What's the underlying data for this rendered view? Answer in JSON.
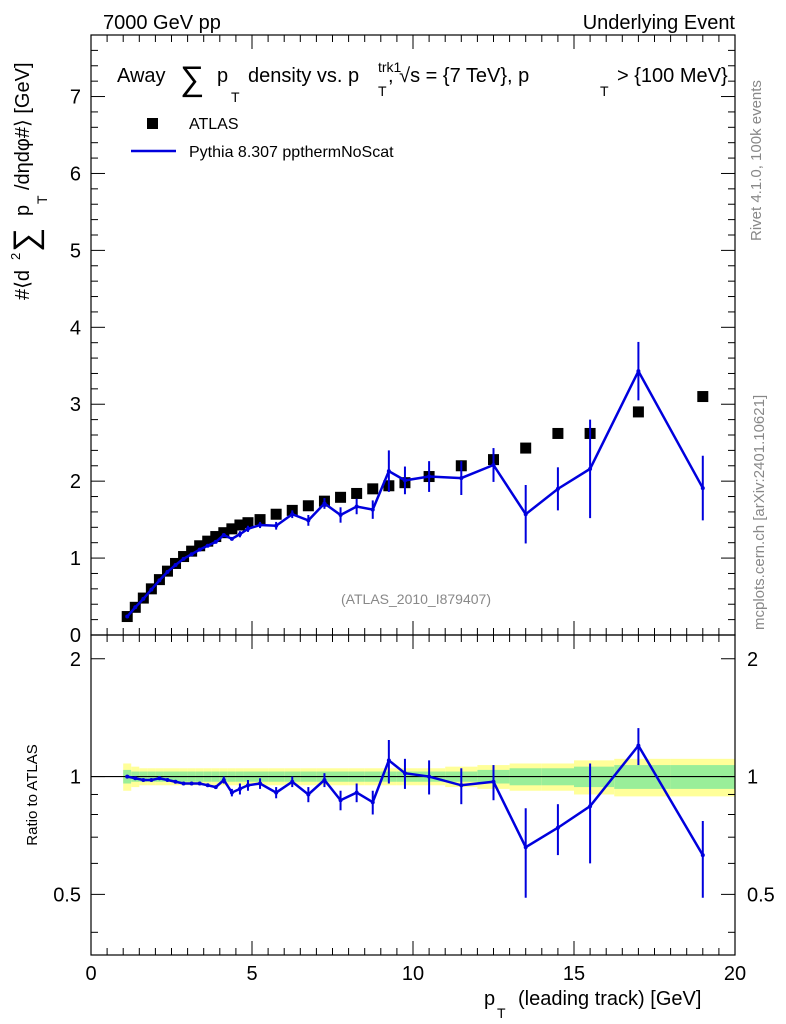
{
  "header": {
    "left": "7000 GeV pp",
    "right": "Underlying Event"
  },
  "side": {
    "rivet": "Rivet 4.1.0,  100k events",
    "mcplots": "mcplots.cern.ch [arXiv:2401.10621]"
  },
  "chart_data": {
    "type": "scatter",
    "title": "Away Σ pT density vs. pTtrk1, √s = {7 TeV}, pT > {100 MeV}",
    "title_parts": {
      "away": "Away",
      "sum": "∑",
      "p": "p",
      "T": "T",
      "density": "density vs. p",
      "trk1": "trk1",
      "sqrt": ", √s = {7 TeV}, p",
      "gt": "> {100 MeV}"
    },
    "analysis_label": "(ATLAS_2010_I879407)",
    "ylabel_parts": {
      "a": "#⟨d",
      "b": "2",
      "c": "∑",
      "d": "p",
      "e": "T",
      "f": "/dηdφ#⟩ [GeV]"
    },
    "ratio_ylabel": "Ratio to ATLAS",
    "xlabel_parts": {
      "a": "p",
      "b": "T",
      "c": "(leading track) [GeV]"
    },
    "xlim": [
      0,
      20
    ],
    "ylim": [
      0,
      7.8
    ],
    "ratio_ylim": [
      0.35,
      2.3
    ],
    "x_ticks": [
      "0",
      "5",
      "10",
      "15",
      "20"
    ],
    "y_ticks": [
      "0",
      "1",
      "2",
      "3",
      "4",
      "5",
      "6",
      "7"
    ],
    "ratio_ticks": [
      "0.5",
      "1",
      "2"
    ],
    "legend": [
      {
        "name": "ATLAS",
        "marker": "square",
        "color": "#000000"
      },
      {
        "name": "Pythia 8.307 ppthermNoScat",
        "marker": "line",
        "color": "#0000dd"
      }
    ],
    "x": [
      1.125,
      1.375,
      1.625,
      1.875,
      2.125,
      2.375,
      2.625,
      2.875,
      3.125,
      3.375,
      3.625,
      3.875,
      4.125,
      4.375,
      4.625,
      4.875,
      5.25,
      5.75,
      6.25,
      6.75,
      7.25,
      7.75,
      8.25,
      8.75,
      9.25,
      9.75,
      10.5,
      11.5,
      12.5,
      13.5,
      14.5,
      15.5,
      17.0,
      19.0
    ],
    "series": [
      {
        "name": "ATLAS",
        "values": [
          0.24,
          0.36,
          0.48,
          0.6,
          0.72,
          0.83,
          0.93,
          1.02,
          1.09,
          1.16,
          1.22,
          1.28,
          1.33,
          1.38,
          1.43,
          1.46,
          1.5,
          1.57,
          1.62,
          1.68,
          1.74,
          1.79,
          1.84,
          1.9,
          1.94,
          1.98,
          2.06,
          2.2,
          2.28,
          2.43,
          2.62,
          2.62,
          2.9,
          3.1
        ],
        "band_inner": [
          0.04,
          0.03,
          0.03,
          0.03,
          0.03,
          0.03,
          0.03,
          0.03,
          0.03,
          0.03,
          0.03,
          0.03,
          0.03,
          0.03,
          0.03,
          0.03,
          0.03,
          0.03,
          0.03,
          0.03,
          0.03,
          0.03,
          0.03,
          0.03,
          0.03,
          0.03,
          0.03,
          0.03,
          0.04,
          0.05,
          0.05,
          0.06,
          0.07,
          0.07
        ],
        "band_outer": [
          0.08,
          0.06,
          0.05,
          0.05,
          0.05,
          0.05,
          0.05,
          0.05,
          0.05,
          0.05,
          0.05,
          0.05,
          0.05,
          0.05,
          0.05,
          0.05,
          0.05,
          0.05,
          0.05,
          0.05,
          0.05,
          0.05,
          0.05,
          0.05,
          0.05,
          0.05,
          0.05,
          0.06,
          0.07,
          0.08,
          0.08,
          0.1,
          0.11,
          0.11
        ]
      },
      {
        "name": "Pythia 8.307 ppthermNoScat",
        "values": [
          0.24,
          0.36,
          0.47,
          0.59,
          0.71,
          0.82,
          0.91,
          0.99,
          1.05,
          1.11,
          1.16,
          1.21,
          1.3,
          1.25,
          1.31,
          1.38,
          1.43,
          1.42,
          1.57,
          1.49,
          1.71,
          1.56,
          1.67,
          1.63,
          2.13,
          2.01,
          2.06,
          2.04,
          2.21,
          1.57,
          1.9,
          2.16,
          3.43,
          1.91
        ],
        "errors": [
          0.01,
          0.01,
          0.01,
          0.01,
          0.01,
          0.01,
          0.01,
          0.01,
          0.01,
          0.01,
          0.02,
          0.02,
          0.03,
          0.03,
          0.04,
          0.04,
          0.04,
          0.05,
          0.05,
          0.07,
          0.07,
          0.1,
          0.1,
          0.12,
          0.27,
          0.18,
          0.2,
          0.22,
          0.22,
          0.38,
          0.28,
          0.64,
          0.38,
          0.42
        ]
      }
    ],
    "ratio_values": [
      1.0,
      0.99,
      0.98,
      0.98,
      0.99,
      0.98,
      0.97,
      0.96,
      0.96,
      0.96,
      0.95,
      0.94,
      0.98,
      0.91,
      0.93,
      0.95,
      0.96,
      0.91,
      0.97,
      0.9,
      0.98,
      0.87,
      0.91,
      0.86,
      1.1,
      1.02,
      1.0,
      0.95,
      0.97,
      0.66,
      0.74,
      0.84,
      1.2,
      0.63
    ],
    "ratio_errors": [
      0.01,
      0.01,
      0.01,
      0.01,
      0.01,
      0.01,
      0.01,
      0.01,
      0.01,
      0.01,
      0.01,
      0.01,
      0.02,
      0.02,
      0.03,
      0.03,
      0.03,
      0.03,
      0.03,
      0.04,
      0.04,
      0.05,
      0.05,
      0.06,
      0.14,
      0.09,
      0.1,
      0.1,
      0.1,
      0.17,
      0.11,
      0.24,
      0.13,
      0.14
    ]
  }
}
